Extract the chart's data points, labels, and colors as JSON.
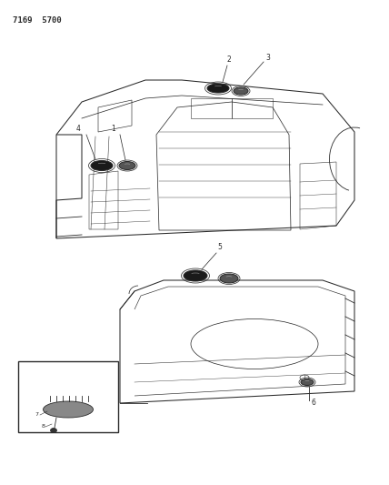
{
  "title": "7169  5700",
  "bg_color": "#ffffff",
  "fig_width": 4.28,
  "fig_height": 5.33,
  "dpi": 100,
  "line_color": "#2a2a2a",
  "lw": 0.75
}
